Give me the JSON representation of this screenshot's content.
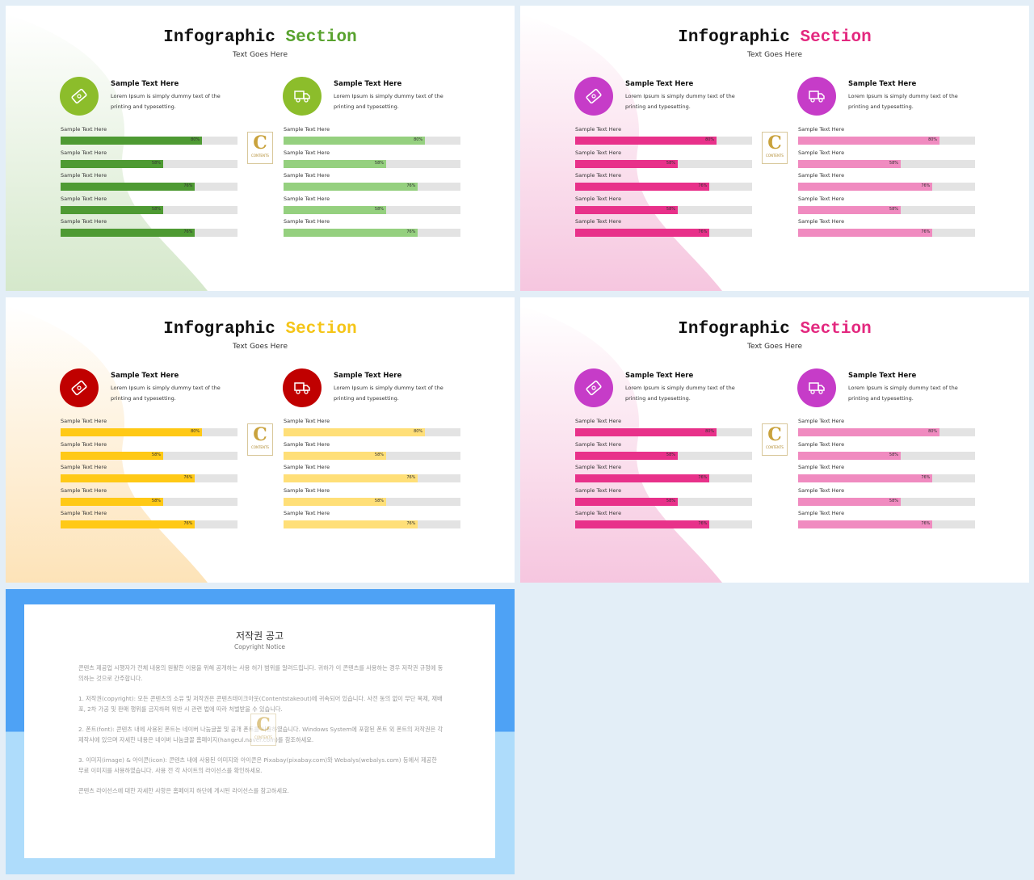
{
  "slides": [
    {
      "title_1": "Infographic",
      "title_2": "Section",
      "subtitle": "Text Goes Here",
      "accent": "#58a22e",
      "circle_color": "#8cbd2b",
      "blob_color": "#d5e8cb",
      "features": [
        {
          "heading": "Sample Text Here",
          "body": "Lorem Ipsum is simply dummy text of the printing and typesetting."
        },
        {
          "heading": "Sample Text Here",
          "body": "Lorem Ipsum is simply dummy text of the printing and typesetting."
        }
      ],
      "bar_groups": [
        {
          "color": "#4e9a33",
          "labels": [
            "Sample Text Here",
            "Sample Text Here",
            "Sample Text Here",
            "Sample Text Here",
            "Sample Text Here"
          ],
          "values": [
            80,
            58,
            76,
            58,
            76
          ],
          "value_labels": [
            "80%",
            "58%",
            "76%",
            "58%",
            "76%"
          ]
        },
        {
          "color": "#95d07f",
          "labels": [
            "Sample Text Here",
            "Sample Text Here",
            "Sample Text Here",
            "Sample Text Here",
            "Sample Text Here"
          ],
          "values": [
            80,
            58,
            76,
            58,
            76
          ],
          "value_labels": [
            "80%",
            "58%",
            "76%",
            "58%",
            "76%"
          ]
        }
      ],
      "logo": {
        "letter": "C",
        "text": "CONTENTS"
      }
    },
    {
      "title_1": "Infographic",
      "title_2": "Section",
      "subtitle": "Text Goes Here",
      "accent": "#e3287f",
      "circle_color": "#c63cc8",
      "blob_color": "#f6c6df",
      "features": [
        {
          "heading": "Sample Text Here",
          "body": "Lorem Ipsum is simply dummy text of the printing and typesetting."
        },
        {
          "heading": "Sample Text Here",
          "body": "Lorem Ipsum is simply dummy text of the printing and typesetting."
        }
      ],
      "bar_groups": [
        {
          "color": "#e8318a",
          "labels": [
            "Sample Text Here",
            "Sample Text Here",
            "Sample Text Here",
            "Sample Text Here",
            "Sample Text Here"
          ],
          "values": [
            80,
            58,
            76,
            58,
            76
          ],
          "value_labels": [
            "80%",
            "58%",
            "76%",
            "58%",
            "76%"
          ]
        },
        {
          "color": "#f08bc0",
          "labels": [
            "Sample Text Here",
            "Sample Text Here",
            "Sample Text Here",
            "Sample Text Here",
            "Sample Text Here"
          ],
          "values": [
            80,
            58,
            76,
            58,
            76
          ],
          "value_labels": [
            "80%",
            "58%",
            "76%",
            "58%",
            "76%"
          ]
        }
      ],
      "logo": {
        "letter": "C",
        "text": "CONTENTS"
      }
    },
    {
      "title_1": "Infographic",
      "title_2": "Section",
      "subtitle": "Text Goes Here",
      "accent": "#f5c518",
      "circle_color": "#c00000",
      "blob_color": "#fde3b8",
      "features": [
        {
          "heading": "Sample Text Here",
          "body": "Lorem Ipsum is simply dummy text of the printing and typesetting."
        },
        {
          "heading": "Sample Text Here",
          "body": "Lorem Ipsum is simply dummy text of the printing and typesetting."
        }
      ],
      "bar_groups": [
        {
          "color": "#ffc916",
          "labels": [
            "Sample Text Here",
            "Sample Text Here",
            "Sample Text Here",
            "Sample Text Here",
            "Sample Text Here"
          ],
          "values": [
            80,
            58,
            76,
            58,
            76
          ],
          "value_labels": [
            "80%",
            "58%",
            "76%",
            "58%",
            "76%"
          ]
        },
        {
          "color": "#ffdf78",
          "labels": [
            "Sample Text Here",
            "Sample Text Here",
            "Sample Text Here",
            "Sample Text Here",
            "Sample Text Here"
          ],
          "values": [
            80,
            58,
            76,
            58,
            76
          ],
          "value_labels": [
            "80%",
            "58%",
            "76%",
            "58%",
            "76%"
          ]
        }
      ],
      "logo": {
        "letter": "C",
        "text": "CONTENTS"
      }
    },
    {
      "title_1": "Infographic",
      "title_2": "Section",
      "subtitle": "Text Goes Here",
      "accent": "#e3287f",
      "circle_color": "#c63cc8",
      "blob_color": "#f6c6df",
      "features": [
        {
          "heading": "Sample Text Here",
          "body": "Lorem Ipsum is simply dummy text of the printing and typesetting."
        },
        {
          "heading": "Sample Text Here",
          "body": "Lorem Ipsum is simply dummy text of the printing and typesetting."
        }
      ],
      "bar_groups": [
        {
          "color": "#e8318a",
          "labels": [
            "Sample Text Here",
            "Sample Text Here",
            "Sample Text Here",
            "Sample Text Here",
            "Sample Text Here"
          ],
          "values": [
            80,
            58,
            76,
            58,
            76
          ],
          "value_labels": [
            "80%",
            "58%",
            "76%",
            "58%",
            "76%"
          ]
        },
        {
          "color": "#f08bc0",
          "labels": [
            "Sample Text Here",
            "Sample Text Here",
            "Sample Text Here",
            "Sample Text Here",
            "Sample Text Here"
          ],
          "values": [
            80,
            58,
            76,
            58,
            76
          ],
          "value_labels": [
            "80%",
            "58%",
            "76%",
            "58%",
            "76%"
          ]
        }
      ],
      "logo": {
        "letter": "C",
        "text": "CONTENTS"
      }
    }
  ],
  "copyright": {
    "title": "저작권 공고",
    "subtitle": "Copyright Notice",
    "paragraphs": [
      "콘텐츠 제공업 시행자가 전체 내용의 원활한 이용을 위해 공개하는 사용 허가 범위를 알려드립니다. 귀하가 이 콘텐츠를 사용하는 경우 저작권 규정에 동의하는 것으로 간주합니다.",
      "1. 저작권(copyright): 모든 콘텐츠의 소유 및 저작권은 콘텐츠테이크아웃(Contentstakeout)에 귀속되어 있습니다. 사전 동의 없이 무단 복제, 재배포, 2차 가공 및 판매 행위를 금지하며 위반 시 관련 법에 따라 처벌받을 수 있습니다.",
      "2. 폰트(font): 콘텐츠 내에 사용된 폰트는 네이버 나눔글꼴 및 공개 폰트를 사용하였습니다. Windows System에 포함된 폰트 외 폰트의 저작권은 각 제작사에 있으며 자세한 내용은 네이버 나눔글꼴 홈페이지(hangeul.naver.com)를 참조하세요.",
      "3. 이미지(image) & 아이콘(icon): 콘텐츠 내에 사용된 이미지와 아이콘은 Pixabay(pixabay.com)와 Webalys(webalys.com) 등에서 제공한 무료 이미지를 사용하였습니다. 사용 전 각 사이트의 라이선스를 확인하세요.",
      "콘텐츠 라이선스에 대한 자세한 사항은 홈페이지 하단에 게시된 라이선스를 참고하세요."
    ],
    "logo": {
      "letter": "C",
      "text": "CONTENTS"
    }
  }
}
